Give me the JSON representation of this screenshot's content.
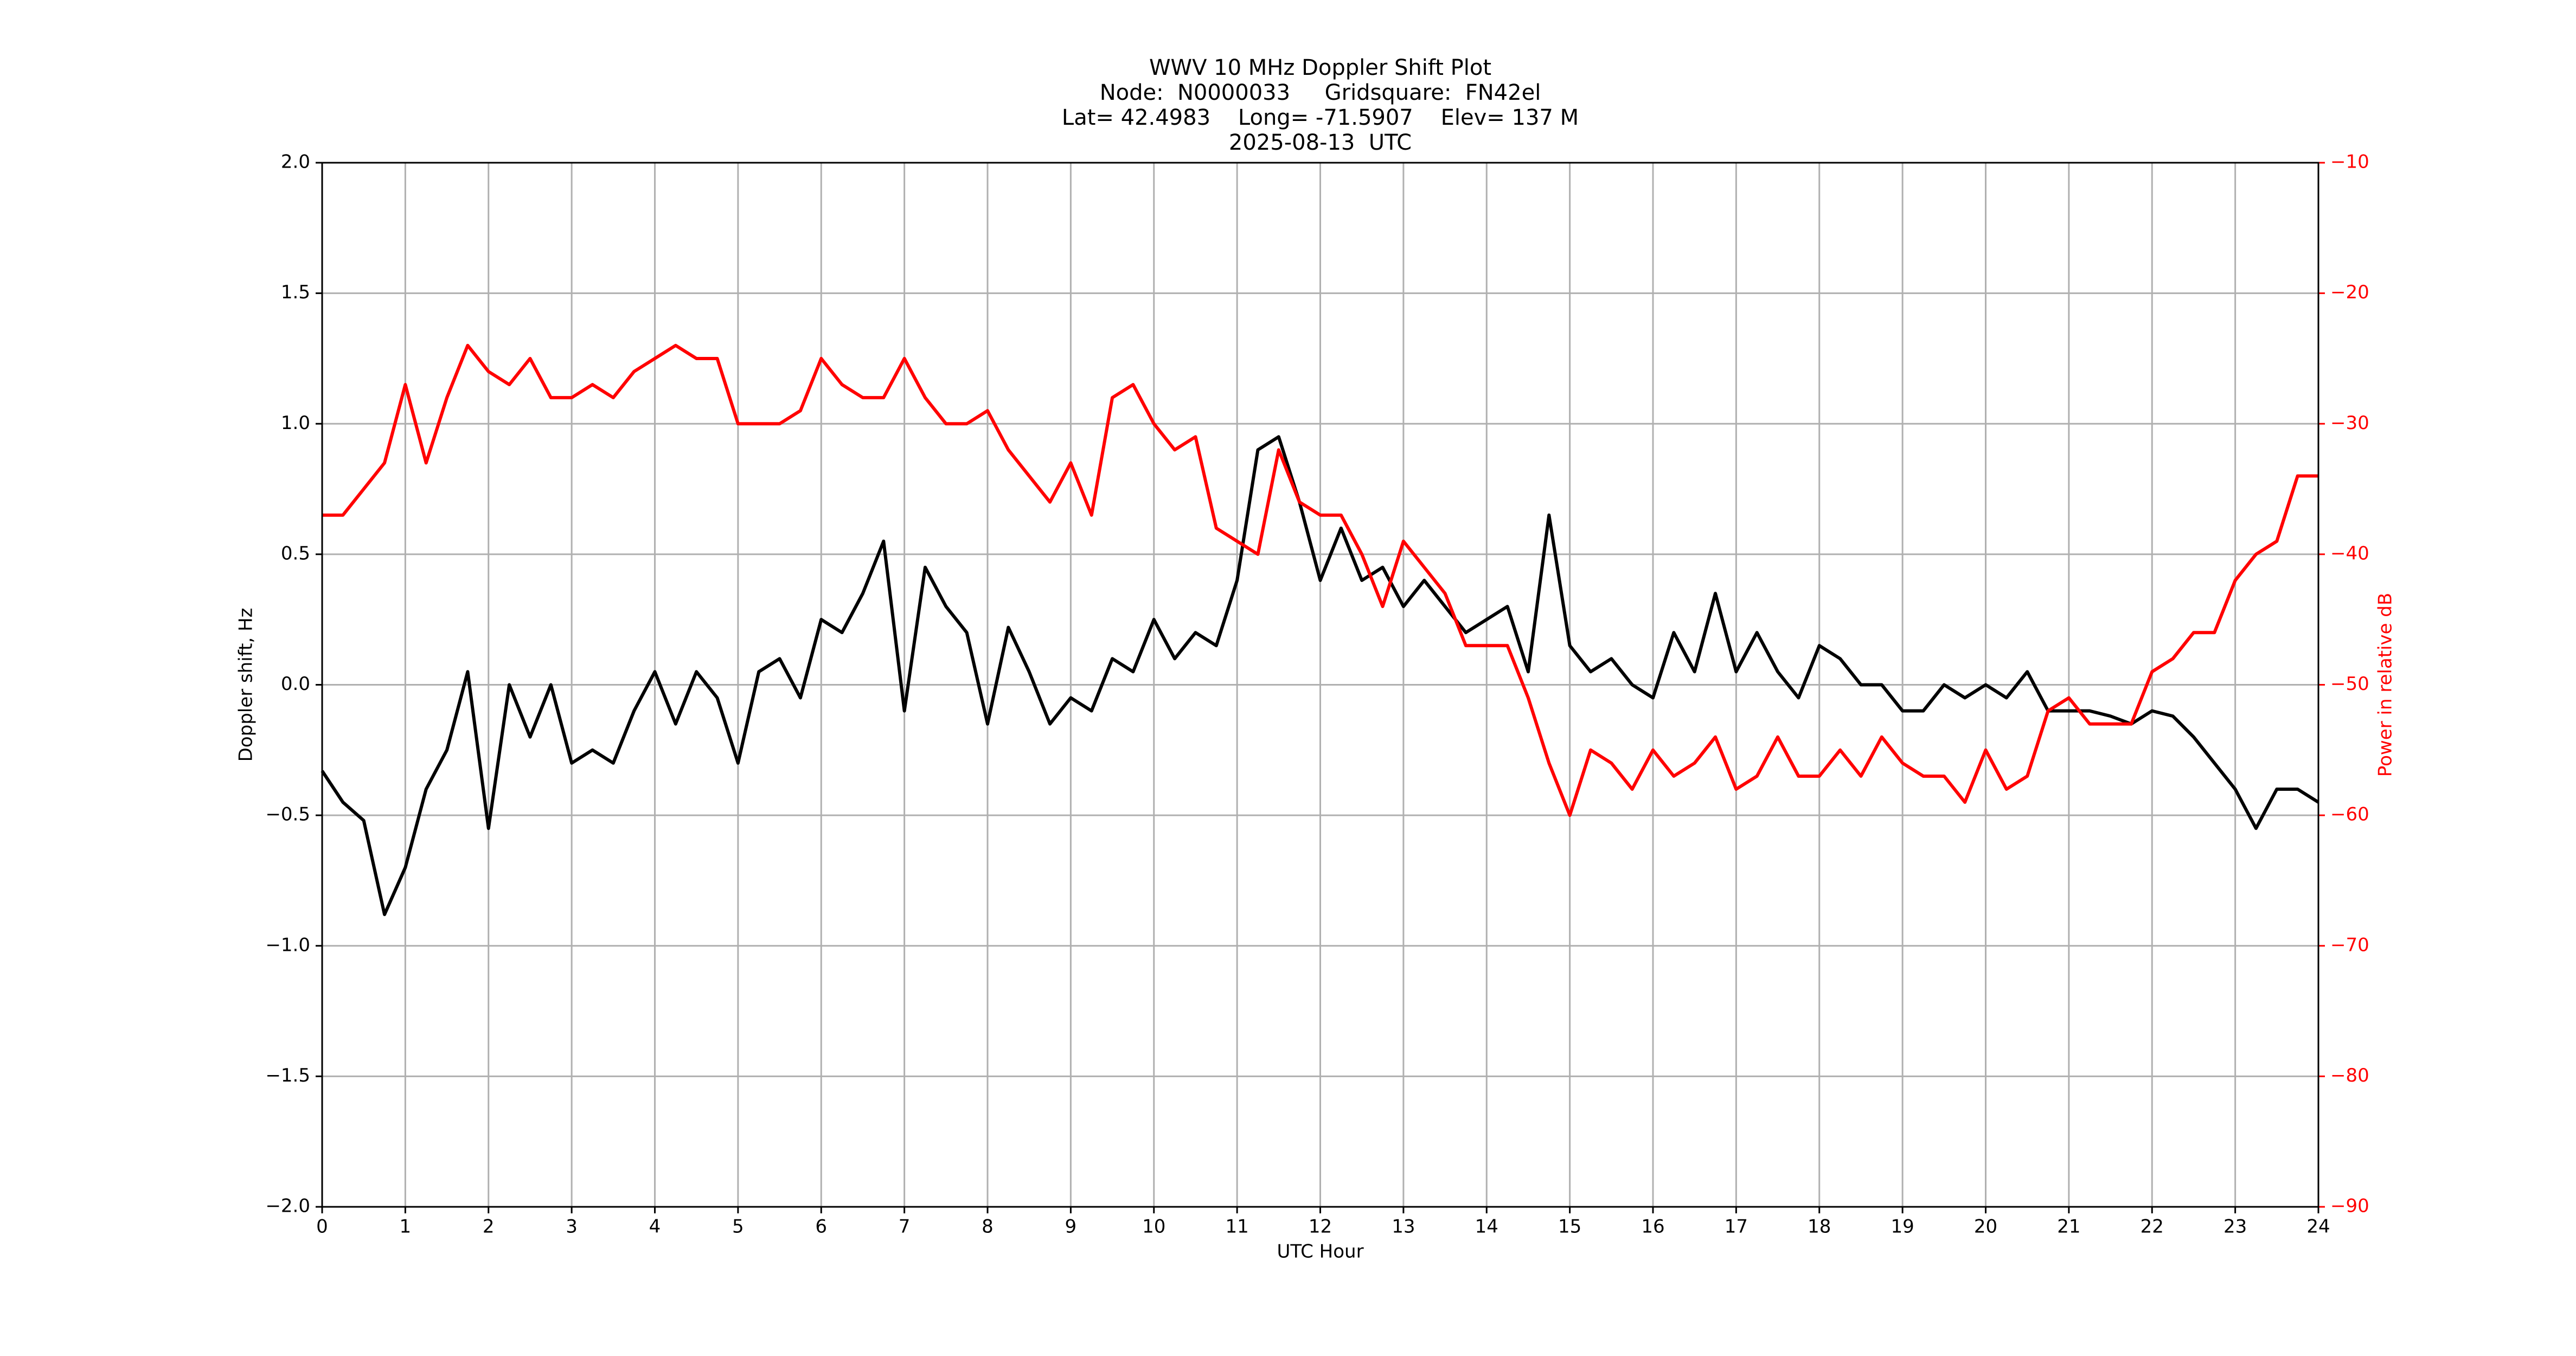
{
  "chart_data": {
    "type": "line",
    "title": [
      "WWV 10 MHz Doppler Shift Plot",
      "Node:  N0000033     Gridsquare:  FN42el",
      "Lat= 42.4983    Long= -71.5907    Elev= 137 M",
      "2025-08-13  UTC"
    ],
    "xlabel": "UTC Hour",
    "ylabel": "Doppler shift, Hz",
    "y2label": "Power in relative dB",
    "grid": true,
    "xlim": [
      0,
      24
    ],
    "xticks": [
      0,
      1,
      2,
      3,
      4,
      5,
      6,
      7,
      8,
      9,
      10,
      11,
      12,
      13,
      14,
      15,
      16,
      17,
      18,
      19,
      20,
      21,
      22,
      23,
      24
    ],
    "ylim": [
      -2,
      2
    ],
    "yticks": [
      {
        "value": -2,
        "label": "−2.0"
      },
      {
        "value": -1.5,
        "label": "−1.5"
      },
      {
        "value": -1,
        "label": "−1.0"
      },
      {
        "value": -0.5,
        "label": "−0.5"
      },
      {
        "value": 0,
        "label": "0.0"
      },
      {
        "value": 0.5,
        "label": "0.5"
      },
      {
        "value": 1,
        "label": "1.0"
      },
      {
        "value": 1.5,
        "label": "1.5"
      },
      {
        "value": 2,
        "label": "2.0"
      }
    ],
    "y2lim": [
      -90,
      -10
    ],
    "y2ticks": [
      {
        "value": -90,
        "label": "−90"
      },
      {
        "value": -80,
        "label": "−80"
      },
      {
        "value": -70,
        "label": "−70"
      },
      {
        "value": -60,
        "label": "−60"
      },
      {
        "value": -50,
        "label": "−50"
      },
      {
        "value": -40,
        "label": "−40"
      },
      {
        "value": -30,
        "label": "−30"
      },
      {
        "value": -20,
        "label": "−20"
      },
      {
        "value": -10,
        "label": "−10"
      }
    ],
    "y2color": "#ff0000",
    "x": [
      0,
      0.25,
      0.5,
      0.75,
      1,
      1.25,
      1.5,
      1.75,
      2,
      2.25,
      2.5,
      2.75,
      3,
      3.25,
      3.5,
      3.75,
      4,
      4.25,
      4.5,
      4.75,
      5,
      5.25,
      5.5,
      5.75,
      6,
      6.25,
      6.5,
      6.75,
      7,
      7.25,
      7.5,
      7.75,
      8,
      8.25,
      8.5,
      8.75,
      9,
      9.25,
      9.5,
      9.75,
      10,
      10.25,
      10.5,
      10.75,
      11,
      11.25,
      11.5,
      11.75,
      12,
      12.25,
      12.5,
      12.75,
      13,
      13.25,
      13.5,
      13.75,
      14,
      14.25,
      14.5,
      14.75,
      15,
      15.25,
      15.5,
      15.75,
      16,
      16.25,
      16.5,
      16.75,
      17,
      17.25,
      17.5,
      17.75,
      18,
      18.25,
      18.5,
      18.75,
      19,
      19.25,
      19.5,
      19.75,
      20,
      20.25,
      20.5,
      20.75,
      21,
      21.25,
      21.5,
      21.75,
      22,
      22.25,
      22.5,
      22.75,
      23,
      23.25,
      23.5,
      23.75,
      24
    ],
    "series": [
      {
        "color": "#000000",
        "axis": "y",
        "values": [
          -0.33,
          -0.45,
          -0.52,
          -0.88,
          -0.7,
          -0.4,
          -0.25,
          0.05,
          -0.55,
          0.0,
          -0.2,
          0.0,
          -0.3,
          -0.25,
          -0.3,
          -0.1,
          0.05,
          -0.15,
          0.05,
          -0.05,
          -0.3,
          0.05,
          0.1,
          -0.05,
          0.25,
          0.2,
          0.35,
          0.55,
          -0.1,
          0.45,
          0.3,
          0.2,
          -0.15,
          0.22,
          0.05,
          -0.15,
          -0.05,
          -0.1,
          0.1,
          0.05,
          0.25,
          0.1,
          0.2,
          0.15,
          0.4,
          0.9,
          0.95,
          0.7,
          0.4,
          0.6,
          0.4,
          0.45,
          0.3,
          0.4,
          0.3,
          0.2,
          0.25,
          0.3,
          0.05,
          0.65,
          0.15,
          0.05,
          0.1,
          0.0,
          -0.05,
          0.2,
          0.05,
          0.35,
          0.05,
          0.2,
          0.05,
          -0.05,
          0.15,
          0.1,
          0.0,
          0.0,
          -0.1,
          -0.1,
          0.0,
          -0.05,
          0.0,
          -0.05,
          0.05,
          -0.1,
          -0.1,
          -0.1,
          -0.12,
          -0.15,
          -0.1,
          -0.12,
          -0.2,
          -0.3,
          -0.4,
          -0.55,
          -0.4,
          -0.4,
          -0.45
        ]
      },
      {
        "color": "#ff0000",
        "axis": "y2",
        "values": [
          -37,
          -37,
          -35,
          -33,
          -27,
          -33,
          -28,
          -24,
          -26,
          -27,
          -25,
          -28,
          -28,
          -27,
          -28,
          -26,
          -25,
          -24,
          -25,
          -25,
          -30,
          -30,
          -30,
          -29,
          -25,
          -27,
          -28,
          -28,
          -25,
          -28,
          -30,
          -30,
          -29,
          -32,
          -34,
          -36,
          -33,
          -37,
          -28,
          -27,
          -30,
          -32,
          -31,
          -38,
          -39,
          -40,
          -32,
          -36,
          -37,
          -37,
          -40,
          -44,
          -39,
          -41,
          -43,
          -47,
          -47,
          -47,
          -51,
          -56,
          -60,
          -55,
          -56,
          -58,
          -55,
          -57,
          -56,
          -54,
          -58,
          -57,
          -54,
          -57,
          -57,
          -55,
          -57,
          -54,
          -56,
          -57,
          -57,
          -59,
          -55,
          -58,
          -57,
          -52,
          -51,
          -53,
          -53,
          -53,
          -49,
          -48,
          -46,
          -46,
          -42,
          -40,
          -39,
          -34,
          -34
        ]
      }
    ]
  }
}
